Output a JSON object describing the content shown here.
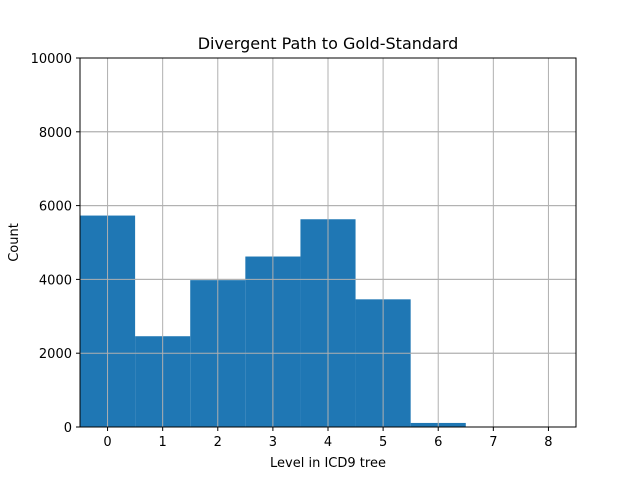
{
  "chart_data": {
    "type": "bar",
    "title": "Divergent Path to Gold-Standard",
    "xlabel": "Level in ICD9 tree",
    "ylabel": "Count",
    "categories": [
      "0",
      "1",
      "2",
      "3",
      "4",
      "5",
      "6",
      "7",
      "8"
    ],
    "x": [
      0,
      1,
      2,
      3,
      4,
      5,
      6,
      7,
      8
    ],
    "values": [
      5730,
      2460,
      3980,
      4620,
      5630,
      3460,
      110,
      0,
      0
    ],
    "xlim": [
      -0.5,
      8.5
    ],
    "ylim": [
      0,
      10000
    ],
    "yticks": [
      0,
      2000,
      4000,
      6000,
      8000,
      10000
    ],
    "xticks": [
      0,
      1,
      2,
      3,
      4,
      5,
      6,
      7,
      8
    ],
    "grid": true,
    "bar_color": "#1f77b4",
    "grid_color": "#b0b0b0"
  }
}
